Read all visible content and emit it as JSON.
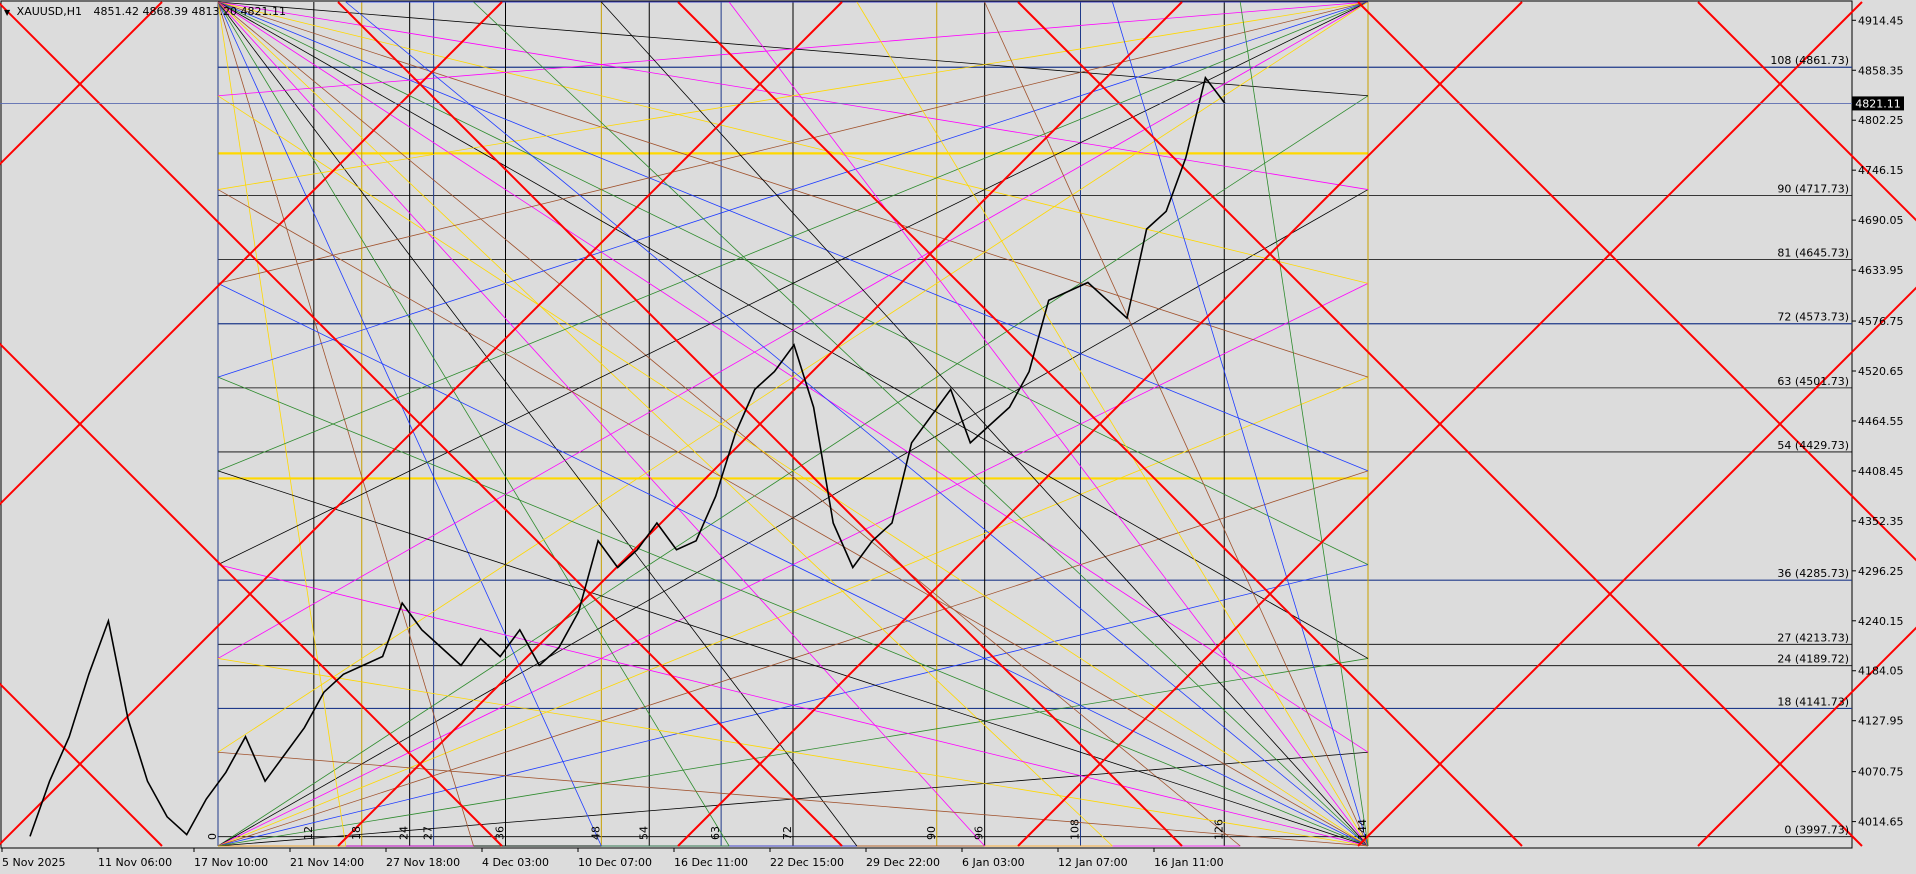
{
  "header": {
    "symbol": "XAUUSD,H1",
    "open": "4851.42",
    "high": "4868.39",
    "low": "4813.20",
    "close": "4821.11"
  },
  "colors": {
    "background": "#dcdcdc",
    "candles": "#000000",
    "grid_blue": "#1f3a8a",
    "grid_black": "#000000",
    "fan_red": "#ff0000",
    "fan_blue": "#1e3cff",
    "fan_green": "#2e8b2e",
    "fan_black": "#000000",
    "fan_magenta": "#ff00ff",
    "fan_yellow": "#ffd800",
    "fan_brown": "#a0522d",
    "current_price_bg": "#000000",
    "current_price_text": "#ffffff"
  },
  "chart_data": {
    "type": "line",
    "title": "",
    "series": [
      {
        "name": "",
        "close": [
          3998,
          4060,
          4110,
          4180,
          4240,
          4130,
          4060,
          4020,
          4000,
          4040,
          4070,
          4110,
          4060,
          4090,
          4120,
          4160,
          4180,
          4190,
          4200,
          4260,
          4230,
          4210,
          4190,
          4220,
          4200,
          4230,
          4190,
          4210,
          4250,
          4330,
          4300,
          4320,
          4350,
          4320,
          4330,
          4380,
          4450,
          4500,
          4520,
          4550,
          4480,
          4350,
          4300,
          4330,
          4350,
          4440,
          4470,
          4500,
          4440,
          4460,
          4480,
          4520,
          4600,
          4610,
          4620,
          4600,
          4580,
          4680,
          4700,
          4760,
          4850,
          4821
        ]
      }
    ],
    "price_axis": {
      "labels": [
        "4914.45",
        "4858.35",
        "4802.25",
        "4746.15",
        "4690.05",
        "4633.95",
        "4576.75",
        "4520.65",
        "4464.55",
        "4408.45",
        "4352.35",
        "4296.25",
        "4240.15",
        "4184.05",
        "4127.95",
        "4070.75",
        "4014.65"
      ],
      "current_price": "4821.11",
      "range": [
        3985,
        4935
      ]
    },
    "time_axis": {
      "labels": [
        "5 Nov 2025",
        "11 Nov 06:00",
        "17 Nov 10:00",
        "21 Nov 14:00",
        "27 Nov 18:00",
        "4 Dec 03:00",
        "10 Dec 07:00",
        "16 Dec 11:00",
        "22 Dec 15:00",
        "29 Dec 22:00",
        "6 Jan 03:00",
        "12 Jan 07:00",
        "16 Jan 11:00"
      ]
    },
    "gann_levels": [
      {
        "label": "108 (4861.73)",
        "value": 4861.73
      },
      {
        "label": "90 (4717.73)",
        "value": 4717.73
      },
      {
        "label": "81 (4645.73)",
        "value": 4645.73
      },
      {
        "label": "72 (4573.73)",
        "value": 4573.73
      },
      {
        "label": "63 (4501.73)",
        "value": 4501.73
      },
      {
        "label": "54 (4429.73)",
        "value": 4429.73
      },
      {
        "label": "36 (4285.73)",
        "value": 4285.73
      },
      {
        "label": "27 (4213.73)",
        "value": 4213.73
      },
      {
        "label": "24 (4189.72)",
        "value": 4189.72
      },
      {
        "label": "18 (4141.73)",
        "value": 4141.73
      },
      {
        "label": "0 (3997.73)",
        "value": 3997.73
      }
    ],
    "yellow_levels": [
      4765,
      4400
    ],
    "time_divisions": [
      "0",
      "12",
      "18",
      "24",
      "27",
      "36",
      "48",
      "54",
      "63",
      "72",
      "90",
      "96",
      "108",
      "126",
      "144"
    ],
    "grid": true,
    "legend": "none"
  }
}
